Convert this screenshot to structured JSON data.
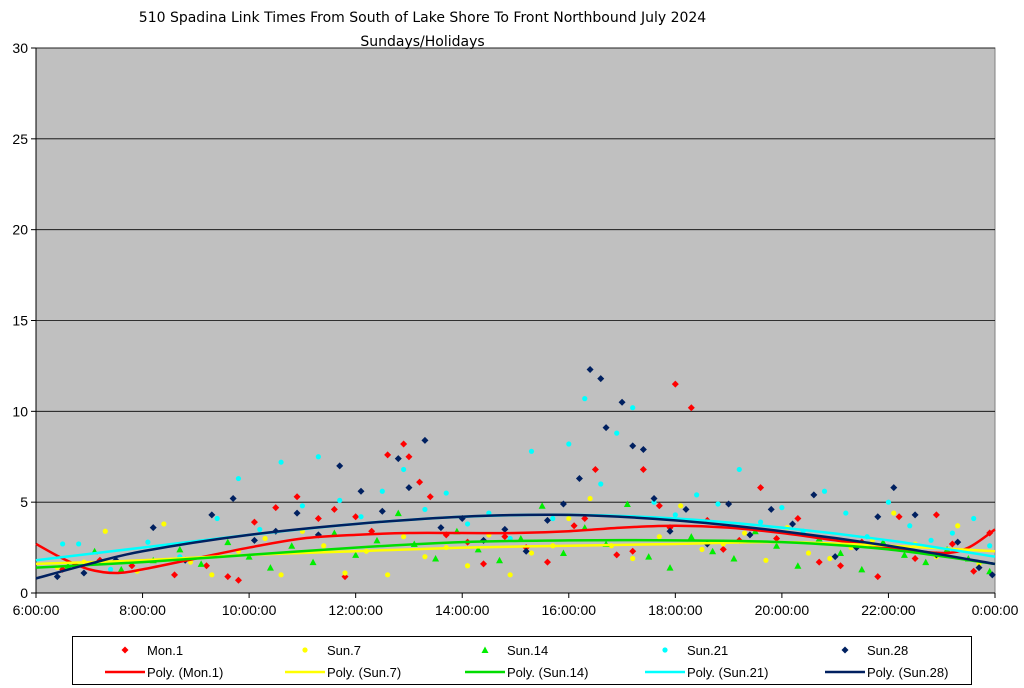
{
  "chart_data": {
    "type": "scatter",
    "title": "510 Spadina Link Times From South of Lake Shore To Front Northbound July 2024",
    "subtitle": "Sundays/Holidays",
    "xlabel": "",
    "ylabel": "",
    "xlim": [
      6,
      24
    ],
    "ylim": [
      0,
      30
    ],
    "yticks": [
      0,
      5,
      10,
      15,
      20,
      25,
      30
    ],
    "xticks": [
      "6:00:00",
      "8:00:00",
      "10:00:00",
      "12:00:00",
      "14:00:00",
      "16:00:00",
      "18:00:00",
      "20:00:00",
      "22:00:00",
      "0:00:00"
    ],
    "grid": true,
    "legend_position": "bottom",
    "plot_background": "#c0c0c0",
    "series": [
      {
        "name": "Mon.1",
        "color": "#ff0000",
        "marker": "diamond",
        "points": [
          [
            6.5,
            1.3
          ],
          [
            7.2,
            1.8
          ],
          [
            7.8,
            1.5
          ],
          [
            8.6,
            1.0
          ],
          [
            9.2,
            1.5
          ],
          [
            9.6,
            0.9
          ],
          [
            9.8,
            0.7
          ],
          [
            10.1,
            3.9
          ],
          [
            10.5,
            4.7
          ],
          [
            10.9,
            5.3
          ],
          [
            11.3,
            4.1
          ],
          [
            11.6,
            4.6
          ],
          [
            11.8,
            0.9
          ],
          [
            12.0,
            4.2
          ],
          [
            12.3,
            3.4
          ],
          [
            12.6,
            7.6
          ],
          [
            12.9,
            8.2
          ],
          [
            13.0,
            7.5
          ],
          [
            13.2,
            6.1
          ],
          [
            13.4,
            5.3
          ],
          [
            13.7,
            3.2
          ],
          [
            14.1,
            2.8
          ],
          [
            14.4,
            1.6
          ],
          [
            14.8,
            3.1
          ],
          [
            15.2,
            2.5
          ],
          [
            15.6,
            1.7
          ],
          [
            16.1,
            3.7
          ],
          [
            16.3,
            4.1
          ],
          [
            16.5,
            6.8
          ],
          [
            16.9,
            2.1
          ],
          [
            17.2,
            2.3
          ],
          [
            17.4,
            6.8
          ],
          [
            17.7,
            4.8
          ],
          [
            17.9,
            3.6
          ],
          [
            18.0,
            11.5
          ],
          [
            18.3,
            10.2
          ],
          [
            18.6,
            4.0
          ],
          [
            18.9,
            2.4
          ],
          [
            19.2,
            2.9
          ],
          [
            19.6,
            5.8
          ],
          [
            19.9,
            3.0
          ],
          [
            20.3,
            4.1
          ],
          [
            20.7,
            1.7
          ],
          [
            21.1,
            1.5
          ],
          [
            21.5,
            2.8
          ],
          [
            21.8,
            0.9
          ],
          [
            22.2,
            4.2
          ],
          [
            22.5,
            1.9
          ],
          [
            22.9,
            4.3
          ],
          [
            23.2,
            2.7
          ],
          [
            23.6,
            1.2
          ],
          [
            23.9,
            3.3
          ]
        ]
      },
      {
        "name": "Sun.7",
        "color": "#ffff00",
        "marker": "circle",
        "points": [
          [
            6.4,
            1.4
          ],
          [
            6.9,
            1.7
          ],
          [
            7.3,
            3.4
          ],
          [
            7.9,
            1.2
          ],
          [
            8.4,
            3.8
          ],
          [
            8.9,
            1.7
          ],
          [
            9.3,
            1.0
          ],
          [
            9.8,
            2.3
          ],
          [
            10.3,
            3.0
          ],
          [
            10.6,
            1.0
          ],
          [
            11.0,
            3.4
          ],
          [
            11.4,
            2.6
          ],
          [
            11.8,
            1.1
          ],
          [
            12.2,
            2.3
          ],
          [
            12.6,
            1.0
          ],
          [
            12.9,
            3.1
          ],
          [
            13.3,
            2.0
          ],
          [
            13.7,
            2.5
          ],
          [
            14.1,
            1.5
          ],
          [
            14.5,
            3.2
          ],
          [
            14.9,
            1.0
          ],
          [
            15.3,
            2.2
          ],
          [
            15.7,
            2.6
          ],
          [
            16.0,
            4.1
          ],
          [
            16.4,
            5.2
          ],
          [
            16.8,
            2.6
          ],
          [
            17.2,
            1.9
          ],
          [
            17.7,
            3.1
          ],
          [
            18.1,
            4.8
          ],
          [
            18.5,
            2.4
          ],
          [
            18.9,
            2.7
          ],
          [
            19.3,
            3.3
          ],
          [
            19.7,
            1.8
          ],
          [
            20.1,
            3.6
          ],
          [
            20.5,
            2.2
          ],
          [
            20.9,
            1.9
          ],
          [
            21.3,
            2.5
          ],
          [
            21.7,
            2.9
          ],
          [
            22.1,
            4.4
          ],
          [
            22.5,
            2.7
          ],
          [
            22.9,
            2.0
          ],
          [
            23.3,
            3.7
          ],
          [
            23.7,
            1.6
          ]
        ]
      },
      {
        "name": "Sun.14",
        "color": "#00ee00",
        "marker": "triangle",
        "points": [
          [
            6.6,
            1.5
          ],
          [
            7.1,
            2.3
          ],
          [
            7.6,
            1.3
          ],
          [
            8.2,
            1.8
          ],
          [
            8.7,
            2.4
          ],
          [
            9.1,
            1.6
          ],
          [
            9.6,
            2.8
          ],
          [
            10.0,
            2.0
          ],
          [
            10.4,
            1.4
          ],
          [
            10.8,
            2.6
          ],
          [
            11.2,
            1.7
          ],
          [
            11.6,
            3.3
          ],
          [
            12.0,
            2.1
          ],
          [
            12.4,
            2.9
          ],
          [
            12.8,
            4.4
          ],
          [
            13.1,
            2.7
          ],
          [
            13.5,
            1.9
          ],
          [
            13.9,
            3.4
          ],
          [
            14.3,
            2.4
          ],
          [
            14.7,
            1.8
          ],
          [
            15.1,
            3.0
          ],
          [
            15.5,
            4.8
          ],
          [
            15.9,
            2.2
          ],
          [
            16.3,
            3.6
          ],
          [
            16.7,
            2.7
          ],
          [
            17.1,
            4.9
          ],
          [
            17.5,
            2.0
          ],
          [
            17.9,
            1.4
          ],
          [
            18.3,
            3.1
          ],
          [
            18.7,
            2.3
          ],
          [
            19.1,
            1.9
          ],
          [
            19.5,
            3.4
          ],
          [
            19.9,
            2.6
          ],
          [
            20.3,
            1.5
          ],
          [
            20.7,
            3.0
          ],
          [
            21.1,
            2.2
          ],
          [
            21.5,
            1.3
          ],
          [
            21.9,
            2.8
          ],
          [
            22.3,
            2.1
          ],
          [
            22.7,
            1.7
          ],
          [
            23.1,
            2.4
          ],
          [
            23.5,
            1.9
          ],
          [
            23.9,
            1.2
          ]
        ]
      },
      {
        "name": "Sun.21",
        "color": "#00ffff",
        "marker": "circle",
        "points": [
          [
            6.5,
            2.7
          ],
          [
            6.8,
            2.7
          ],
          [
            7.4,
            1.3
          ],
          [
            8.1,
            2.8
          ],
          [
            8.7,
            2.0
          ],
          [
            9.4,
            4.1
          ],
          [
            9.8,
            6.3
          ],
          [
            10.2,
            3.5
          ],
          [
            10.6,
            7.2
          ],
          [
            11.0,
            4.8
          ],
          [
            11.3,
            7.5
          ],
          [
            11.7,
            5.1
          ],
          [
            12.1,
            4.2
          ],
          [
            12.5,
            5.6
          ],
          [
            12.9,
            6.8
          ],
          [
            13.3,
            4.6
          ],
          [
            13.7,
            5.5
          ],
          [
            14.1,
            3.8
          ],
          [
            14.5,
            4.4
          ],
          [
            14.9,
            3.0
          ],
          [
            15.3,
            7.8
          ],
          [
            15.7,
            4.1
          ],
          [
            16.0,
            8.2
          ],
          [
            16.3,
            10.7
          ],
          [
            16.6,
            6.0
          ],
          [
            16.9,
            8.8
          ],
          [
            17.2,
            10.2
          ],
          [
            17.6,
            5.0
          ],
          [
            18.0,
            4.3
          ],
          [
            18.4,
            5.4
          ],
          [
            18.8,
            4.9
          ],
          [
            19.2,
            6.8
          ],
          [
            19.6,
            3.9
          ],
          [
            20.0,
            4.7
          ],
          [
            20.4,
            3.4
          ],
          [
            20.8,
            5.6
          ],
          [
            21.2,
            4.4
          ],
          [
            21.6,
            3.1
          ],
          [
            22.0,
            5.0
          ],
          [
            22.4,
            3.7
          ],
          [
            22.8,
            2.9
          ],
          [
            23.2,
            3.3
          ],
          [
            23.6,
            4.1
          ],
          [
            23.9,
            2.6
          ]
        ]
      },
      {
        "name": "Sun.28",
        "color": "#002060",
        "marker": "diamond",
        "points": [
          [
            6.4,
            0.9
          ],
          [
            6.9,
            1.1
          ],
          [
            7.5,
            1.8
          ],
          [
            8.2,
            3.6
          ],
          [
            8.8,
            1.8
          ],
          [
            9.3,
            4.3
          ],
          [
            9.7,
            5.2
          ],
          [
            10.1,
            2.9
          ],
          [
            10.5,
            3.4
          ],
          [
            10.9,
            4.4
          ],
          [
            11.3,
            3.2
          ],
          [
            11.7,
            7.0
          ],
          [
            12.1,
            5.6
          ],
          [
            12.5,
            4.5
          ],
          [
            12.8,
            7.4
          ],
          [
            13.0,
            5.8
          ],
          [
            13.3,
            8.4
          ],
          [
            13.6,
            3.6
          ],
          [
            14.0,
            4.1
          ],
          [
            14.4,
            2.9
          ],
          [
            14.8,
            3.5
          ],
          [
            15.2,
            2.3
          ],
          [
            15.6,
            4.0
          ],
          [
            15.9,
            4.9
          ],
          [
            16.2,
            6.3
          ],
          [
            16.4,
            12.3
          ],
          [
            16.6,
            11.8
          ],
          [
            16.7,
            9.1
          ],
          [
            17.0,
            10.5
          ],
          [
            17.2,
            8.1
          ],
          [
            17.4,
            7.9
          ],
          [
            17.6,
            5.2
          ],
          [
            17.9,
            3.4
          ],
          [
            18.2,
            4.6
          ],
          [
            18.6,
            2.7
          ],
          [
            19.0,
            4.9
          ],
          [
            19.4,
            3.2
          ],
          [
            19.8,
            4.6
          ],
          [
            20.2,
            3.8
          ],
          [
            20.6,
            5.4
          ],
          [
            21.0,
            2.0
          ],
          [
            21.4,
            2.5
          ],
          [
            21.8,
            4.2
          ],
          [
            22.1,
            5.8
          ],
          [
            22.5,
            4.3
          ],
          [
            22.9,
            2.1
          ],
          [
            23.3,
            2.8
          ],
          [
            23.7,
            1.4
          ],
          [
            23.95,
            1.0
          ]
        ]
      }
    ],
    "trendlines": [
      {
        "name": "Poly. (Mon.1)",
        "color": "#ff0000",
        "points": [
          [
            6,
            2.7
          ],
          [
            6.5,
            1.9
          ],
          [
            7,
            1.3
          ],
          [
            7.5,
            1.1
          ],
          [
            8,
            1.3
          ],
          [
            9,
            1.9
          ],
          [
            10,
            2.5
          ],
          [
            11,
            3.0
          ],
          [
            12,
            3.2
          ],
          [
            13,
            3.3
          ],
          [
            14,
            3.3
          ],
          [
            15,
            3.3
          ],
          [
            16,
            3.4
          ],
          [
            17,
            3.6
          ],
          [
            18,
            3.7
          ],
          [
            19,
            3.6
          ],
          [
            20,
            3.3
          ],
          [
            21,
            2.9
          ],
          [
            22,
            2.5
          ],
          [
            23,
            2.2
          ],
          [
            23.5,
            2.5
          ],
          [
            24,
            3.5
          ]
        ]
      },
      {
        "name": "Poly. (Sun.7)",
        "color": "#ffff00",
        "points": [
          [
            6,
            1.6
          ],
          [
            8,
            1.8
          ],
          [
            10,
            2.1
          ],
          [
            12,
            2.3
          ],
          [
            14,
            2.5
          ],
          [
            16,
            2.6
          ],
          [
            18,
            2.7
          ],
          [
            20,
            2.8
          ],
          [
            22,
            2.6
          ],
          [
            24,
            2.3
          ]
        ]
      },
      {
        "name": "Poly. (Sun.14)",
        "color": "#00dd00",
        "points": [
          [
            6,
            1.4
          ],
          [
            8,
            1.7
          ],
          [
            10,
            2.1
          ],
          [
            12,
            2.5
          ],
          [
            14,
            2.8
          ],
          [
            16,
            2.9
          ],
          [
            18,
            2.9
          ],
          [
            20,
            2.8
          ],
          [
            22,
            2.4
          ],
          [
            24,
            1.6
          ]
        ]
      },
      {
        "name": "Poly. (Sun.21)",
        "color": "#00ffff",
        "points": [
          [
            6,
            1.8
          ],
          [
            8,
            2.5
          ],
          [
            10,
            3.2
          ],
          [
            12,
            3.8
          ],
          [
            14,
            4.2
          ],
          [
            16,
            4.3
          ],
          [
            18,
            4.1
          ],
          [
            20,
            3.6
          ],
          [
            22,
            2.9
          ],
          [
            24,
            2.0
          ]
        ]
      },
      {
        "name": "Poly. (Sun.28)",
        "color": "#002060",
        "points": [
          [
            6,
            0.8
          ],
          [
            7,
            1.6
          ],
          [
            8,
            2.3
          ],
          [
            10,
            3.2
          ],
          [
            12,
            3.8
          ],
          [
            14,
            4.2
          ],
          [
            16,
            4.3
          ],
          [
            18,
            4.0
          ],
          [
            20,
            3.4
          ],
          [
            22,
            2.6
          ],
          [
            24,
            1.6
          ]
        ]
      }
    ]
  }
}
